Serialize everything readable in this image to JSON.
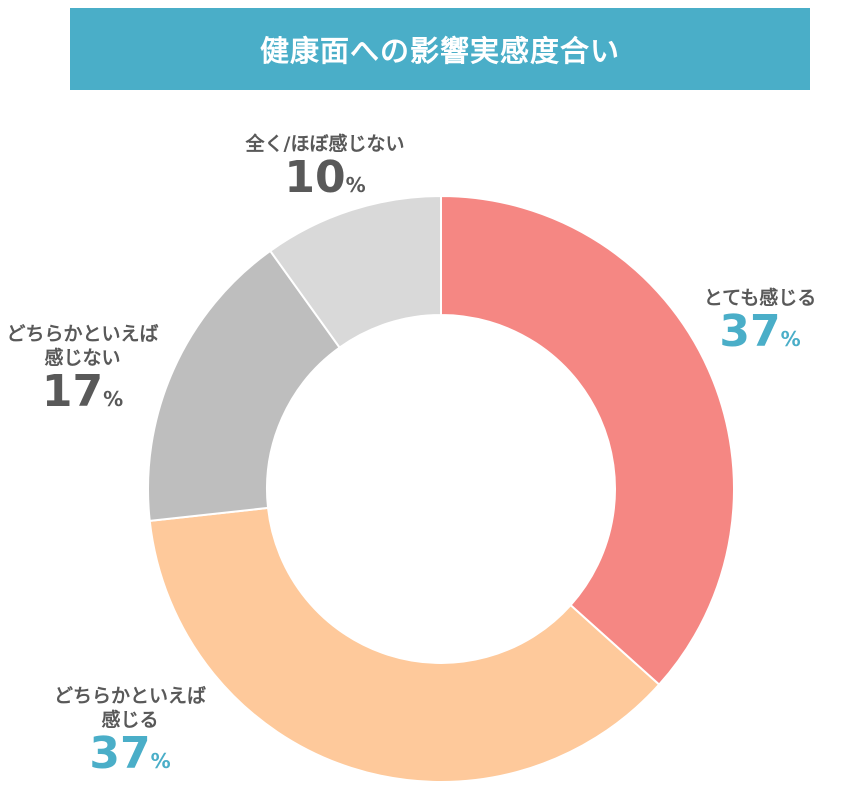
{
  "title": "健康面への影響実感度合い",
  "colors": {
    "title_bg": "#4aaec8",
    "highlight": "#4aaec8",
    "label": "#595959"
  },
  "chart_data": {
    "type": "donut",
    "title": "健康面への影響実感度合い",
    "slices": [
      {
        "label": "とても感じる",
        "value": 37,
        "color": "#f58783",
        "value_text": "37",
        "unit": "%"
      },
      {
        "label": "どちらかといえば感じる",
        "value": 37,
        "color": "#fec99b",
        "value_text": "37",
        "unit": "%"
      },
      {
        "label": "どちらかといえば感じない",
        "value": 17,
        "color": "#bebebe",
        "value_text": "17",
        "unit": "%"
      },
      {
        "label": "全く/ほぼ感じない",
        "value": 10,
        "color": "#d9d9d9",
        "value_text": "10",
        "unit": "%"
      }
    ],
    "display_labels": {
      "s0": [
        "とても感じる"
      ],
      "s1": [
        "どちらかといえば",
        "感じる"
      ],
      "s2": [
        "どちらかといえば",
        "感じない"
      ],
      "s3": [
        "全く/ほぼ感じない"
      ]
    }
  }
}
